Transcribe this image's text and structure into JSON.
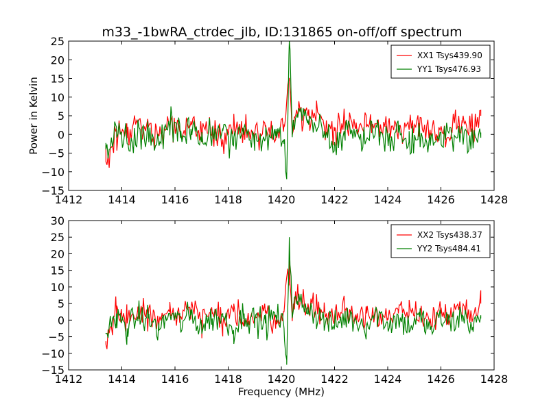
{
  "title": "m33_-1bwRA_ctrdec_jlb, ID:131865 on-off/off spectrum",
  "colors": {
    "xx": "#ff0000",
    "yy": "#008000"
  },
  "chart_data": [
    {
      "type": "line",
      "xlabel": "",
      "ylabel": "Power in Kelvin",
      "xlim": [
        1412,
        1428
      ],
      "ylim": [
        -15,
        25
      ],
      "xticks": [
        "1412",
        "1414",
        "1416",
        "1418",
        "1420",
        "1422",
        "1424",
        "1426",
        "1428"
      ],
      "yticks": [
        "−15",
        "−10",
        "−5",
        "0",
        "5",
        "10",
        "15",
        "20",
        "25"
      ],
      "legend": "top-right",
      "series": [
        {
          "name": "XX1 Tsys439.90",
          "color": "#ff0000",
          "x": [
            1413.4,
            1413.8,
            1414.2,
            1414.6,
            1415.0,
            1415.4,
            1415.8,
            1416.2,
            1416.6,
            1417.0,
            1417.4,
            1417.8,
            1418.2,
            1418.6,
            1419.0,
            1419.4,
            1419.8,
            1420.1,
            1420.3,
            1420.4,
            1420.5,
            1420.7,
            1421.0,
            1421.3,
            1421.6,
            1422.0,
            1422.4,
            1422.8,
            1423.2,
            1423.6,
            1424.0,
            1424.4,
            1424.8,
            1425.2,
            1425.6,
            1426.0,
            1426.4,
            1426.8,
            1427.2,
            1427.5
          ],
          "y": [
            -7.3,
            1.5,
            -1.0,
            3.0,
            2.0,
            -0.5,
            2.5,
            1.0,
            3.5,
            0.0,
            2.0,
            -1.5,
            2.5,
            1.0,
            0.5,
            2.0,
            0.0,
            2.5,
            15.0,
            2.0,
            4.5,
            6.0,
            5.0,
            3.5,
            2.5,
            1.0,
            3.0,
            1.5,
            2.0,
            3.0,
            0.5,
            2.0,
            1.5,
            2.5,
            0.5,
            2.0,
            1.0,
            3.0,
            0.5,
            5.0
          ]
        },
        {
          "name": "YY1 Tsys476.93",
          "color": "#008000",
          "x": [
            1413.4,
            1413.8,
            1414.2,
            1414.6,
            1415.0,
            1415.4,
            1415.8,
            1416.2,
            1416.6,
            1417.0,
            1417.4,
            1417.8,
            1418.2,
            1418.6,
            1419.0,
            1419.4,
            1419.8,
            1420.1,
            1420.2,
            1420.3,
            1420.4,
            1420.6,
            1421.0,
            1421.3,
            1421.6,
            1422.0,
            1422.4,
            1422.8,
            1423.2,
            1423.6,
            1424.0,
            1424.4,
            1424.8,
            1425.2,
            1425.6,
            1426.0,
            1426.4,
            1426.8,
            1427.2,
            1427.5
          ],
          "y": [
            -4.0,
            2.0,
            -2.5,
            1.0,
            0.5,
            -3.0,
            2.0,
            -1.0,
            1.5,
            -2.0,
            0.5,
            1.0,
            -3.0,
            2.0,
            0.0,
            -1.0,
            1.5,
            -2.5,
            -12.0,
            25.0,
            3.0,
            5.5,
            4.0,
            1.5,
            0.0,
            -2.0,
            1.0,
            0.0,
            -1.5,
            2.0,
            -1.0,
            0.5,
            -2.0,
            1.0,
            -3.0,
            0.5,
            -1.0,
            1.5,
            -2.0,
            0.5
          ]
        }
      ]
    },
    {
      "type": "line",
      "xlabel": "Frequency (MHz)",
      "ylabel": "",
      "xlim": [
        1412,
        1428
      ],
      "ylim": [
        -15,
        30
      ],
      "xticks": [
        "1412",
        "1414",
        "1416",
        "1418",
        "1420",
        "1422",
        "1424",
        "1426",
        "1428"
      ],
      "yticks": [
        "−15",
        "−10",
        "−5",
        "0",
        "5",
        "10",
        "15",
        "20",
        "25",
        "30"
      ],
      "legend": "top-right",
      "series": [
        {
          "name": "XX2 Tsys438.37",
          "color": "#ff0000",
          "x": [
            1413.4,
            1413.8,
            1414.2,
            1414.6,
            1415.0,
            1415.4,
            1415.8,
            1416.2,
            1416.6,
            1417.0,
            1417.4,
            1417.8,
            1418.2,
            1418.6,
            1419.0,
            1419.4,
            1419.8,
            1420.1,
            1420.3,
            1420.4,
            1420.5,
            1420.7,
            1421.0,
            1421.3,
            1421.6,
            1422.0,
            1422.4,
            1422.8,
            1423.2,
            1423.6,
            1424.0,
            1424.4,
            1424.8,
            1425.2,
            1425.6,
            1426.0,
            1426.4,
            1426.8,
            1427.2,
            1427.5
          ],
          "y": [
            -7.3,
            1.5,
            -1.0,
            3.0,
            2.0,
            -0.5,
            2.5,
            1.0,
            3.5,
            0.0,
            2.0,
            -1.5,
            2.5,
            1.0,
            0.5,
            2.0,
            0.0,
            2.5,
            18.0,
            2.0,
            4.5,
            6.0,
            5.0,
            3.5,
            2.5,
            1.0,
            3.0,
            1.5,
            2.0,
            3.0,
            0.5,
            2.0,
            1.5,
            2.5,
            0.5,
            2.0,
            1.0,
            3.0,
            0.5,
            5.0
          ]
        },
        {
          "name": "YY2 Tsys484.41",
          "color": "#008000",
          "x": [
            1413.4,
            1413.8,
            1414.2,
            1414.6,
            1415.0,
            1415.4,
            1415.8,
            1416.2,
            1416.6,
            1417.0,
            1417.4,
            1417.8,
            1418.2,
            1418.6,
            1419.0,
            1419.4,
            1419.8,
            1420.1,
            1420.2,
            1420.3,
            1420.4,
            1420.6,
            1421.0,
            1421.3,
            1421.6,
            1422.0,
            1422.4,
            1422.8,
            1423.2,
            1423.6,
            1424.0,
            1424.4,
            1424.8,
            1425.2,
            1425.6,
            1426.0,
            1426.4,
            1426.8,
            1427.2,
            1427.5
          ],
          "y": [
            -4.0,
            2.0,
            -2.5,
            1.0,
            0.5,
            -3.0,
            2.0,
            -1.0,
            1.5,
            -2.0,
            0.5,
            1.0,
            -3.0,
            2.0,
            0.0,
            -1.0,
            1.5,
            -2.5,
            -12.0,
            25.0,
            3.0,
            5.5,
            4.0,
            1.5,
            0.0,
            -2.0,
            1.0,
            0.0,
            -1.5,
            2.0,
            -1.0,
            0.5,
            -2.0,
            1.0,
            -3.0,
            0.5,
            -1.0,
            1.5,
            -2.0,
            0.5
          ]
        }
      ]
    }
  ]
}
